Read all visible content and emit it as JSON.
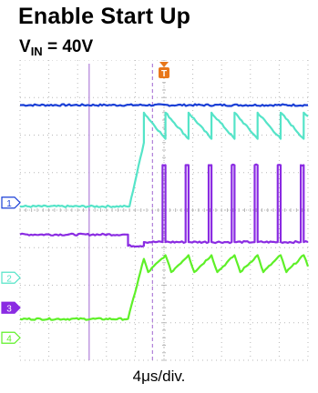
{
  "title": "Enable Start Up",
  "subtitle": {
    "symbol": "V",
    "subscript": "IN",
    "rest": " = 40V"
  },
  "timebase": "4μs/div.",
  "trigger_marker": "T",
  "colors": {
    "background": "#ffffff",
    "grid": "#b8b8b8",
    "ch1": "#1a3fd6",
    "ch2": "#55e4c8",
    "ch3": "#8a2be2",
    "ch4": "#5ef028",
    "cursor": "#b07fd8",
    "trigger": "#e8771a"
  },
  "chart_data": {
    "type": "line",
    "title": "Enable Start Up",
    "subtitle": "VIN = 40V",
    "xlabel": "4μs/div.",
    "x_unit": "divisions",
    "xlim": [
      0,
      10
    ],
    "ylim": [
      0,
      8
    ],
    "grid": true,
    "channels": [
      {
        "id": "1",
        "label": "1",
        "color": "#1a3fd6",
        "ground_div": 4.2
      },
      {
        "id": "2",
        "label": "2",
        "color": "#55e4c8",
        "ground_div": 2.2
      },
      {
        "id": "3",
        "label": "3",
        "color": "#8a2be2",
        "ground_div": 1.4
      },
      {
        "id": "4",
        "label": "4",
        "color": "#5ef028",
        "ground_div": 0.6
      }
    ],
    "series": [
      {
        "channel": "1",
        "x": [
          0,
          10
        ],
        "y": [
          6.8,
          6.8
        ]
      },
      {
        "channel": "2",
        "x": [
          0,
          3.8,
          4.3,
          4.3,
          5.05,
          5.05,
          5.85,
          5.85,
          6.65,
          6.65,
          7.45,
          7.45,
          8.25,
          8.25,
          9.05,
          9.05,
          9.85,
          9.85,
          10
        ],
        "y": [
          4.1,
          4.1,
          5.8,
          6.6,
          5.9,
          6.6,
          5.9,
          6.6,
          5.9,
          6.6,
          5.9,
          6.6,
          5.9,
          6.6,
          5.9,
          6.6,
          5.9,
          6.6,
          6.5
        ]
      },
      {
        "channel": "3",
        "x": [
          0,
          3.75,
          3.75,
          4.3,
          4.3,
          4.95,
          4.95,
          5.05,
          5.05,
          5.75,
          5.75,
          5.85,
          5.85,
          6.55,
          6.55,
          6.65,
          6.65,
          7.35,
          7.35,
          7.45,
          7.45,
          8.15,
          8.15,
          8.25,
          8.25,
          8.95,
          8.95,
          9.05,
          9.05,
          9.75,
          9.75,
          9.85,
          9.85,
          10
        ],
        "y": [
          3.35,
          3.35,
          3.05,
          3.05,
          3.15,
          3.15,
          5.2,
          5.2,
          3.15,
          3.15,
          5.2,
          5.2,
          3.15,
          3.15,
          5.2,
          5.2,
          3.15,
          3.15,
          5.2,
          5.2,
          3.15,
          3.15,
          5.2,
          5.2,
          3.15,
          3.15,
          5.2,
          5.2,
          3.15,
          3.15,
          5.2,
          5.2,
          3.15,
          3.15
        ]
      },
      {
        "channel": "4",
        "x": [
          0,
          3.75,
          4.3,
          4.45,
          5.05,
          5.25,
          5.85,
          6.05,
          6.65,
          6.85,
          7.45,
          7.65,
          8.25,
          8.45,
          9.05,
          9.25,
          9.85,
          10
        ],
        "y": [
          1.1,
          1.1,
          2.7,
          2.35,
          2.8,
          2.35,
          2.8,
          2.35,
          2.8,
          2.35,
          2.8,
          2.35,
          2.8,
          2.35,
          2.8,
          2.35,
          2.8,
          2.5
        ]
      }
    ],
    "cursors_x": [
      2.4,
      4.6
    ],
    "trigger_x": 5.0
  }
}
